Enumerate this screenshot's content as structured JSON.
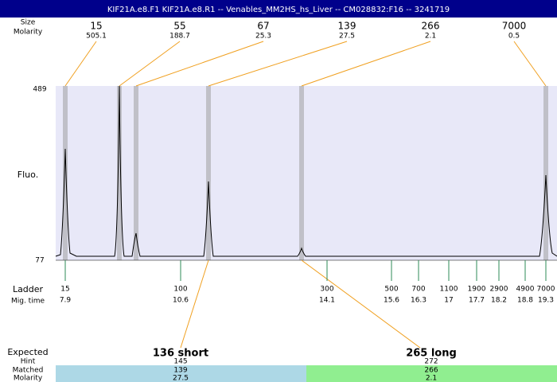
{
  "header": {
    "title": "KIF21A.e8.F1  KIF21A.e8.R1 -- Venables_MM2HS_hs_Liver -- CM028832:F16 -- 3241719"
  },
  "top": {
    "size_label": "Size",
    "molarity_label": "Molarity",
    "peaks": [
      {
        "size": 15,
        "molarity": 505.1
      },
      {
        "size": 55,
        "molarity": 188.7
      },
      {
        "size": 67,
        "molarity": 25.3
      },
      {
        "size": 139,
        "molarity": 27.5
      },
      {
        "size": 266,
        "molarity": 2.1
      },
      {
        "size": 7000,
        "molarity": 0.5
      }
    ]
  },
  "plot": {
    "y_max": 489,
    "y_min": 77,
    "y_label": "Fluo."
  },
  "ladder": {
    "label": "Ladder",
    "mig_label": "Mig. time",
    "points": [
      {
        "size": 15,
        "time": 7.9
      },
      {
        "size": 100,
        "time": 10.6
      },
      {
        "size": 300,
        "time": 14.1
      },
      {
        "size": 500,
        "time": 15.6
      },
      {
        "size": 700,
        "time": 16.3
      },
      {
        "size": 1100,
        "time": 17
      },
      {
        "size": 1900,
        "time": 17.7
      },
      {
        "size": 2900,
        "time": 18.2
      },
      {
        "size": 4900,
        "time": 18.8
      },
      {
        "size": 7000,
        "time": 19.3
      }
    ]
  },
  "expected": {
    "label": "Expected",
    "hint_label": "Hint",
    "matched_label": "Matched",
    "molarity_label": "Molarity",
    "products": [
      {
        "name": "136 short",
        "hint": 145,
        "matched": 139,
        "molarity": 27.5
      },
      {
        "name": "265 long",
        "hint": 272,
        "matched": 266,
        "molarity": 2.1
      }
    ]
  }
}
